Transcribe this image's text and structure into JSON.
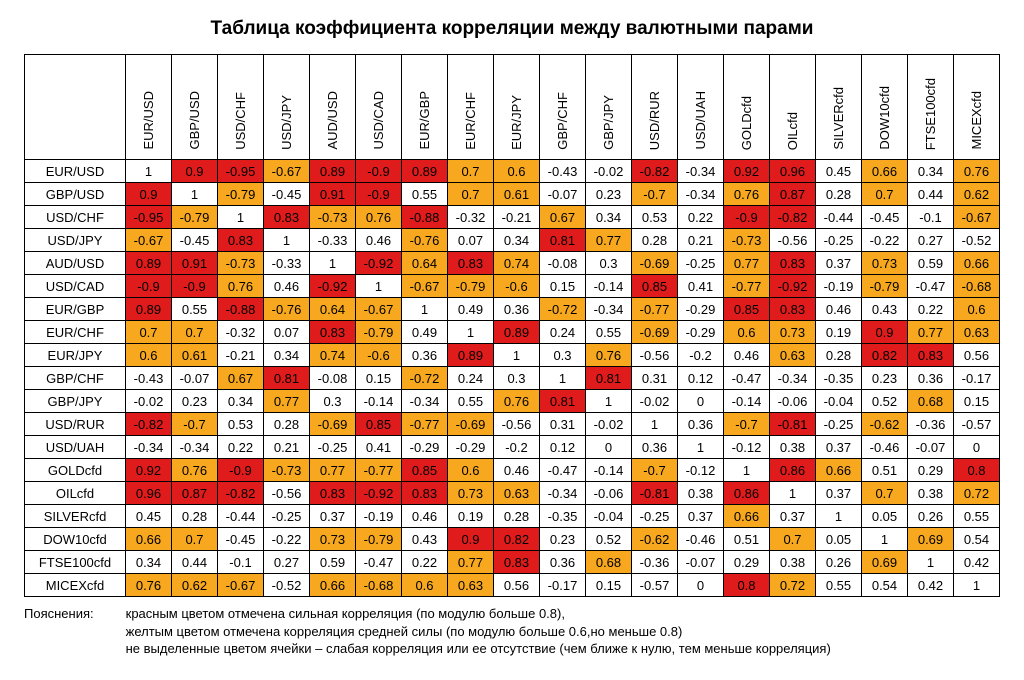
{
  "title": "Таблица коэффициента корреляции между валютными парами",
  "colors": {
    "strong": "#e01b1b",
    "medium": "#f7a81e",
    "none": "#ffffff"
  },
  "thresholds": {
    "strong": 0.8,
    "medium": 0.6
  },
  "symbols": [
    "EUR/USD",
    "GBP/USD",
    "USD/CHF",
    "USD/JPY",
    "AUD/USD",
    "USD/CAD",
    "EUR/GBP",
    "EUR/CHF",
    "EUR/JPY",
    "GBP/CHF",
    "GBP/JPY",
    "USD/RUR",
    "USD/UAH",
    "GOLDcfd",
    "OILcfd",
    "SILVERcfd",
    "DOW10cfd",
    "FTSE100cfd",
    "MICEXcfd"
  ],
  "matrix": [
    [
      1,
      0.9,
      -0.95,
      -0.67,
      0.89,
      -0.9,
      0.89,
      0.7,
      0.6,
      -0.43,
      -0.02,
      -0.82,
      -0.34,
      0.92,
      0.96,
      0.45,
      0.66,
      0.34,
      0.76
    ],
    [
      0.9,
      1,
      -0.79,
      -0.45,
      0.91,
      -0.9,
      0.55,
      0.7,
      0.61,
      -0.07,
      0.23,
      -0.7,
      -0.34,
      0.76,
      0.87,
      0.28,
      0.7,
      0.44,
      0.62
    ],
    [
      -0.95,
      -0.79,
      1,
      0.83,
      -0.73,
      0.76,
      -0.88,
      -0.32,
      -0.21,
      0.67,
      0.34,
      0.53,
      0.22,
      -0.9,
      -0.82,
      -0.44,
      -0.45,
      -0.1,
      -0.67
    ],
    [
      -0.67,
      -0.45,
      0.83,
      1,
      -0.33,
      0.46,
      -0.76,
      0.07,
      0.34,
      0.81,
      0.77,
      0.28,
      0.21,
      -0.73,
      -0.56,
      -0.25,
      -0.22,
      0.27,
      -0.52
    ],
    [
      0.89,
      0.91,
      -0.73,
      -0.33,
      1,
      -0.92,
      0.64,
      0.83,
      0.74,
      -0.08,
      0.3,
      -0.69,
      -0.25,
      0.77,
      0.83,
      0.37,
      0.73,
      0.59,
      0.66
    ],
    [
      -0.9,
      -0.9,
      0.76,
      0.46,
      -0.92,
      1,
      -0.67,
      -0.79,
      -0.6,
      0.15,
      -0.14,
      0.85,
      0.41,
      -0.77,
      -0.92,
      -0.19,
      -0.79,
      -0.47,
      -0.68
    ],
    [
      0.89,
      0.55,
      -0.88,
      -0.76,
      0.64,
      -0.67,
      1,
      0.49,
      0.36,
      -0.72,
      -0.34,
      -0.77,
      -0.29,
      0.85,
      0.83,
      0.46,
      0.43,
      0.22,
      0.6
    ],
    [
      0.7,
      0.7,
      -0.32,
      0.07,
      0.83,
      -0.79,
      0.49,
      1,
      0.89,
      0.24,
      0.55,
      -0.69,
      -0.29,
      0.6,
      0.73,
      0.19,
      0.9,
      0.77,
      0.63
    ],
    [
      0.6,
      0.61,
      -0.21,
      0.34,
      0.74,
      -0.6,
      0.36,
      0.89,
      1,
      0.3,
      0.76,
      -0.56,
      -0.2,
      0.46,
      0.63,
      0.28,
      0.82,
      0.83,
      0.56
    ],
    [
      -0.43,
      -0.07,
      0.67,
      0.81,
      -0.08,
      0.15,
      -0.72,
      0.24,
      0.3,
      1,
      0.81,
      0.31,
      0.12,
      -0.47,
      -0.34,
      -0.35,
      0.23,
      0.36,
      -0.17
    ],
    [
      -0.02,
      0.23,
      0.34,
      0.77,
      0.3,
      -0.14,
      -0.34,
      0.55,
      0.76,
      0.81,
      1,
      -0.02,
      0,
      -0.14,
      -0.06,
      -0.04,
      0.52,
      0.68,
      0.15
    ],
    [
      -0.82,
      -0.7,
      0.53,
      0.28,
      -0.69,
      0.85,
      -0.77,
      -0.69,
      -0.56,
      0.31,
      -0.02,
      1,
      0.36,
      -0.7,
      -0.81,
      -0.25,
      -0.62,
      -0.36,
      -0.57
    ],
    [
      -0.34,
      -0.34,
      0.22,
      0.21,
      -0.25,
      0.41,
      -0.29,
      -0.29,
      -0.2,
      0.12,
      0,
      0.36,
      1,
      -0.12,
      0.38,
      0.37,
      -0.46,
      -0.07,
      0
    ],
    [
      0.92,
      0.76,
      -0.9,
      -0.73,
      0.77,
      -0.77,
      0.85,
      0.6,
      0.46,
      -0.47,
      -0.14,
      -0.7,
      -0.12,
      1,
      0.86,
      0.66,
      0.51,
      0.29,
      0.8
    ],
    [
      0.96,
      0.87,
      -0.82,
      -0.56,
      0.83,
      -0.92,
      0.83,
      0.73,
      0.63,
      -0.34,
      -0.06,
      -0.81,
      0.38,
      0.86,
      1,
      0.37,
      0.7,
      0.38,
      0.72
    ],
    [
      0.45,
      0.28,
      -0.44,
      -0.25,
      0.37,
      -0.19,
      0.46,
      0.19,
      0.28,
      -0.35,
      -0.04,
      -0.25,
      0.37,
      0.66,
      0.37,
      1,
      0.05,
      0.26,
      0.55
    ],
    [
      0.66,
      0.7,
      -0.45,
      -0.22,
      0.73,
      -0.79,
      0.43,
      0.9,
      0.82,
      0.23,
      0.52,
      -0.62,
      -0.46,
      0.51,
      0.7,
      0.05,
      1,
      0.69,
      0.54
    ],
    [
      0.34,
      0.44,
      -0.1,
      0.27,
      0.59,
      -0.47,
      0.22,
      0.77,
      0.83,
      0.36,
      0.68,
      -0.36,
      -0.07,
      0.29,
      0.38,
      0.26,
      0.69,
      1,
      0.42
    ],
    [
      0.76,
      0.62,
      -0.67,
      -0.52,
      0.66,
      -0.68,
      0.6,
      0.63,
      0.56,
      -0.17,
      0.15,
      -0.57,
      0,
      0.8,
      0.72,
      0.55,
      0.54,
      0.42,
      1
    ]
  ],
  "legend": {
    "label": "Пояснения:",
    "line1": "красным цветом отмечена сильная корреляция (по модулю больше 0.8),",
    "line2": "желтым цветом отмечена  корреляция  средней силы (по модулю больше 0.6,но меньше 0.8)",
    "line3": "не выделенные цветом ячейки – слабая корреляция или ее отсутствие (чем ближе к нулю, тем меньше корреляция)"
  }
}
